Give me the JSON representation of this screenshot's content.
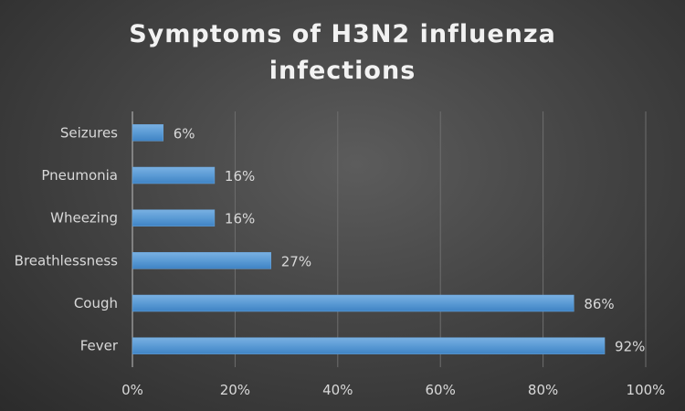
{
  "chart_data": {
    "type": "bar",
    "orientation": "horizontal",
    "title_line1": "Symptoms of H3N2 influenza",
    "title_line2": "infections",
    "categories": [
      "Seizures",
      "Pneumonia",
      "Wheezing",
      "Breathlessness",
      "Cough",
      "Fever"
    ],
    "values": [
      6,
      16,
      16,
      27,
      86,
      92
    ],
    "data_labels": [
      "6%",
      "16%",
      "16%",
      "27%",
      "86%",
      "92%"
    ],
    "x_ticks": [
      "0%",
      "20%",
      "40%",
      "60%",
      "80%",
      "100%"
    ],
    "xlim": [
      0,
      100
    ],
    "xlabel": "",
    "ylabel": "",
    "grid": true,
    "legend": "none",
    "bar_color": "#5b9bd5",
    "background_color": "#404040",
    "text_color": "#d9d9d9"
  }
}
